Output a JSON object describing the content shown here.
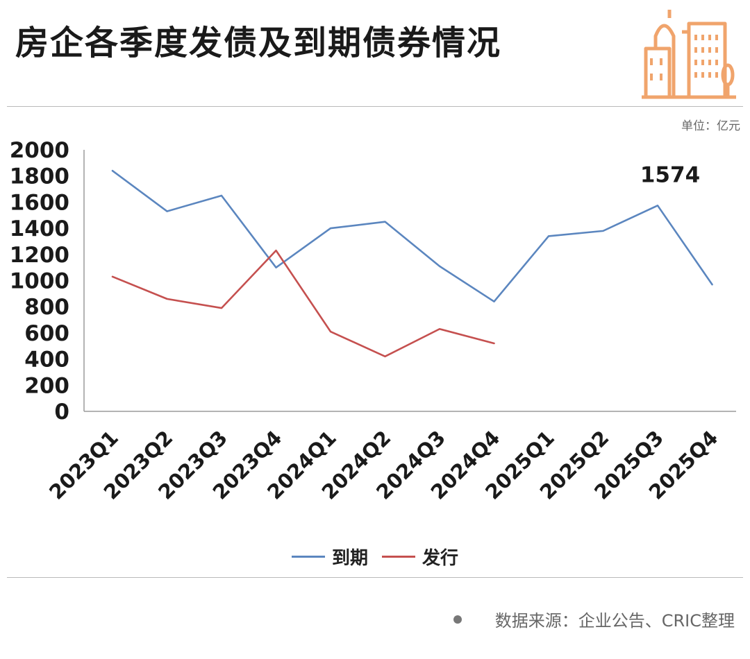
{
  "header": {
    "title": "房企各季度发债及到期债券情况",
    "unit": "单位：亿元"
  },
  "icon": "building-icon",
  "colors": {
    "maturity": "#5b86bf",
    "issuance": "#c5504f",
    "logo": "#f0a46c"
  },
  "chart_data": {
    "type": "line",
    "title": "房企各季度发债及到期债券情况",
    "categories": [
      "2023Q1",
      "2023Q2",
      "2023Q3",
      "2023Q4",
      "2024Q1",
      "2024Q2",
      "2024Q3",
      "2024Q4",
      "2025Q1",
      "2025Q2",
      "2025Q3",
      "2025Q4"
    ],
    "series": [
      {
        "name": "到期",
        "values": [
          1840,
          1530,
          1650,
          1100,
          1400,
          1450,
          1110,
          840,
          1340,
          1380,
          1574,
          970
        ]
      },
      {
        "name": "发行",
        "values": [
          1030,
          860,
          790,
          1230,
          610,
          420,
          630,
          520,
          null,
          null,
          null,
          null
        ]
      }
    ],
    "ylim": [
      0,
      2000
    ],
    "yticks": [
      0,
      200,
      400,
      600,
      800,
      1000,
      1200,
      1400,
      1600,
      1800,
      2000
    ],
    "annotation": {
      "text": "1574",
      "series": 0,
      "index": 10
    },
    "grid": false,
    "legend": "bottom"
  },
  "footer": {
    "source": "数据来源：企业公告、CRIC整理"
  }
}
